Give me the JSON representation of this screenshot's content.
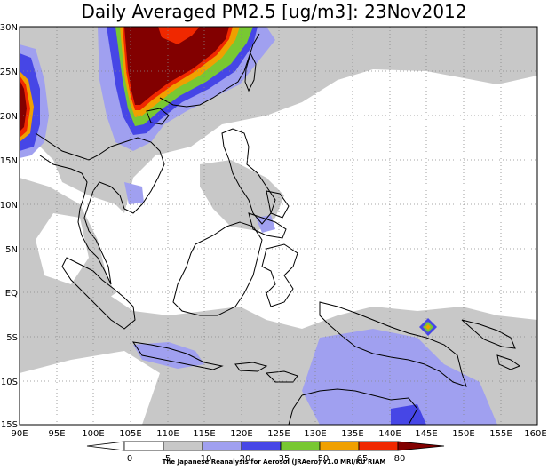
{
  "title": "Daily Averaged PM2.5 [ug/m3]: 23Nov2012",
  "credit": "The Japanese Reanalysis for Aerosol (JRAero) v1.0 MRI/KU RIAM",
  "map": {
    "lat_labels": [
      "30N",
      "25N",
      "20N",
      "15N",
      "10N",
      "5N",
      "EQ",
      "5S",
      "10S",
      "15S"
    ],
    "lon_labels": [
      "90E",
      "95E",
      "100E",
      "105E",
      "110E",
      "115E",
      "120E",
      "125E",
      "130E",
      "135E",
      "140E",
      "145E",
      "150E",
      "155E",
      "160E"
    ],
    "lat_range": [
      -15,
      30
    ],
    "lon_range": [
      90,
      160
    ],
    "grid": true
  },
  "colorbar": {
    "levels": [
      "0",
      "5",
      "10",
      "20",
      "35",
      "50",
      "65",
      "80"
    ],
    "colors": [
      "#ffffff",
      "#ffffff",
      "#c8c8c8",
      "#a0a0f0",
      "#4646e6",
      "#78c832",
      "#f0a000",
      "#f02800",
      "#820000"
    ]
  }
}
